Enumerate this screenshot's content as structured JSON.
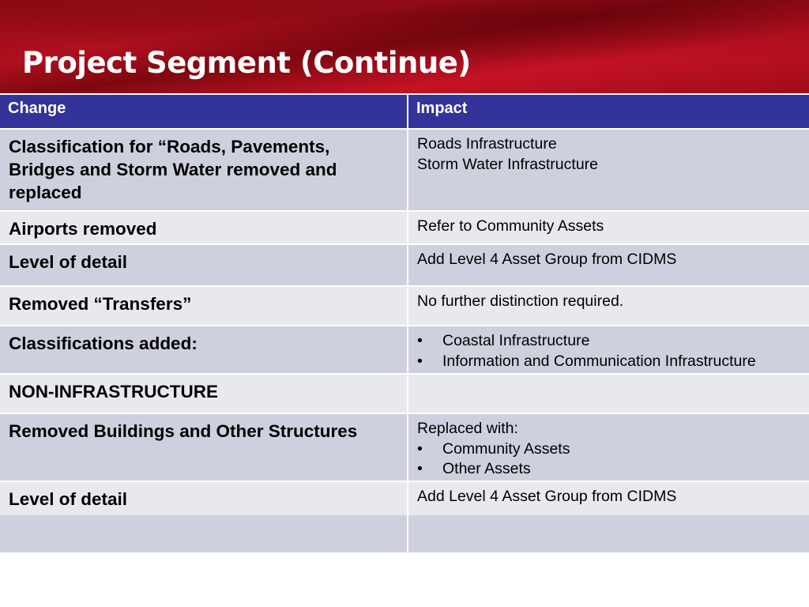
{
  "header": {
    "title": "Project Segment  (Continue)"
  },
  "table": {
    "headers": [
      "Change",
      "Impact"
    ],
    "rows": [
      {
        "change": "Classification for “Roads, Pavements, Bridges and Storm Water removed and replaced",
        "impact": [
          "Roads Infrastructure",
          "Storm Water Infrastructure"
        ]
      },
      {
        "change": "Airports removed",
        "impact": [
          "Refer to Community Assets"
        ]
      },
      {
        "change": "Level of detail",
        "impact": [
          "Add Level 4 Asset Group from CIDMS"
        ]
      },
      {
        "change": "Removed “Transfers”",
        "impact": [
          "No further distinction required."
        ]
      },
      {
        "change": "Classifications added:",
        "bullets": [
          "Coastal Infrastructure",
          "Information and Communication Infrastructure"
        ]
      },
      {
        "change": "NON-INFRASTRUCTURE"
      },
      {
        "change": "Removed Buildings and Other Structures",
        "impact": [
          "Replaced with:"
        ],
        "bullets": [
          "Community Assets",
          "Other Assets"
        ]
      },
      {
        "change": "Level of detail",
        "impact": [
          "Add Level 4 Asset Group from CIDMS"
        ]
      }
    ]
  }
}
